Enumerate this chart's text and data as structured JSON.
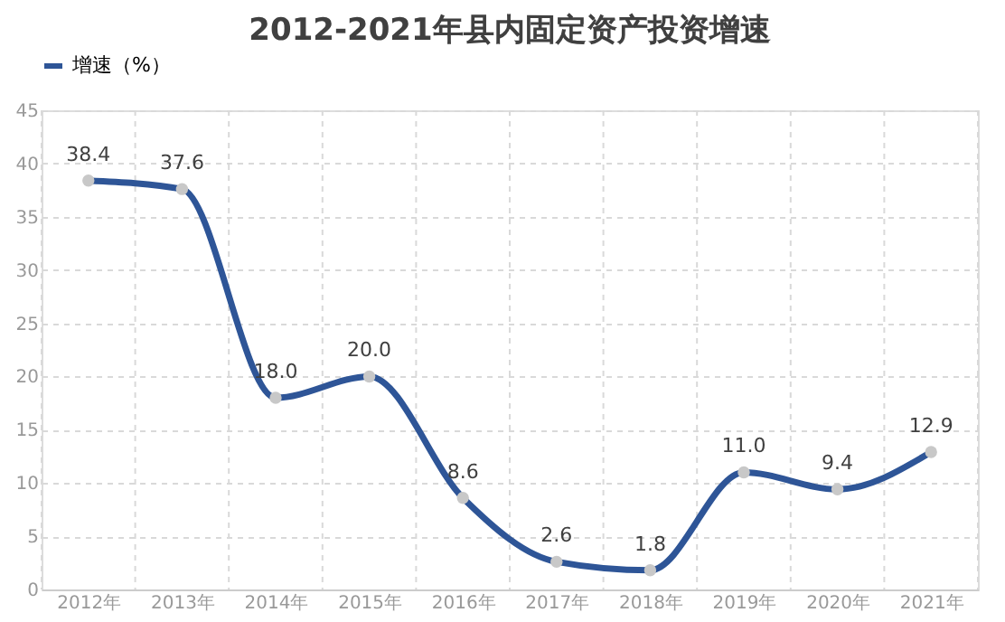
{
  "chart_data": {
    "type": "line",
    "title": "2012-2021年县内固定资产投资增速",
    "categories": [
      "2012年",
      "2013年",
      "2014年",
      "2015年",
      "2016年",
      "2017年",
      "2018年",
      "2019年",
      "2020年",
      "2021年"
    ],
    "series": [
      {
        "name": "增速（%）",
        "color": "#2e5597",
        "values": [
          38.4,
          37.6,
          18.0,
          20.0,
          8.6,
          2.6,
          1.8,
          11.0,
          9.4,
          12.9
        ],
        "value_labels": [
          "38.4",
          "37.6",
          "18.0",
          "20.0",
          "8.6",
          "2.6",
          "1.8",
          "11.0",
          "9.4",
          "12.9"
        ]
      }
    ],
    "ylim": [
      0,
      45
    ],
    "yticks": [
      0,
      5,
      10,
      15,
      20,
      25,
      30,
      35,
      40,
      45
    ],
    "grid": true,
    "legend": "top",
    "marker": "circle",
    "data_labels": true
  }
}
